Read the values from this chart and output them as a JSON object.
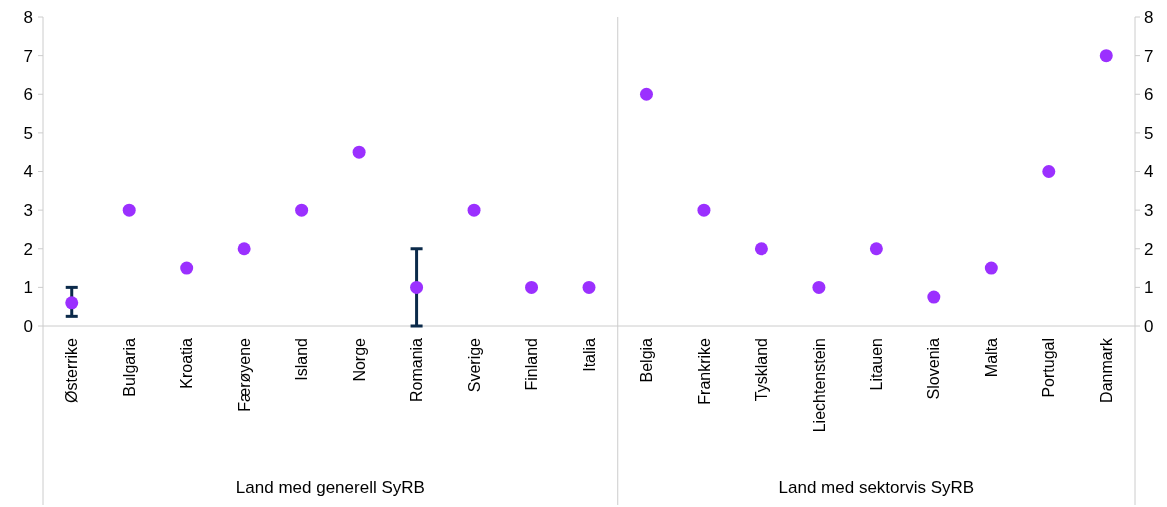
{
  "chart_data": {
    "type": "scatter",
    "categories": [
      "Østerrike",
      "Bulgaria",
      "Kroatia",
      "Færøyene",
      "Island",
      "Norge",
      "Romania",
      "Sverige",
      "Finland",
      "Italia",
      "Belgia",
      "Frankrike",
      "Tyskland",
      "Liechtenstein",
      "Litauen",
      "Slovenia",
      "Malta",
      "Portugal",
      "Danmark"
    ],
    "series": [
      {
        "color": "#9b30ff",
        "values": [
          0.6,
          3,
          1.5,
          2,
          3,
          4.5,
          1,
          3,
          1,
          1,
          6,
          3,
          2,
          1,
          2,
          0.75,
          1.5,
          4,
          7
        ],
        "errors": [
          [
            0.25,
            1
          ],
          null,
          null,
          null,
          null,
          null,
          [
            0,
            2
          ],
          null,
          null,
          null,
          null,
          null,
          null,
          null,
          null,
          null,
          null,
          null,
          null
        ]
      }
    ],
    "ylim": [
      0,
      8
    ],
    "yticks": [
      0,
      1,
      2,
      3,
      4,
      5,
      6,
      7,
      8
    ],
    "y2lim": [
      0,
      8
    ],
    "y2ticks": [
      0,
      1,
      2,
      3,
      4,
      5,
      6,
      7,
      8
    ],
    "annotations": [
      "Land med generell SyRB",
      "Land med sektorvis SyRB"
    ],
    "marker": "circle",
    "grid": false
  }
}
